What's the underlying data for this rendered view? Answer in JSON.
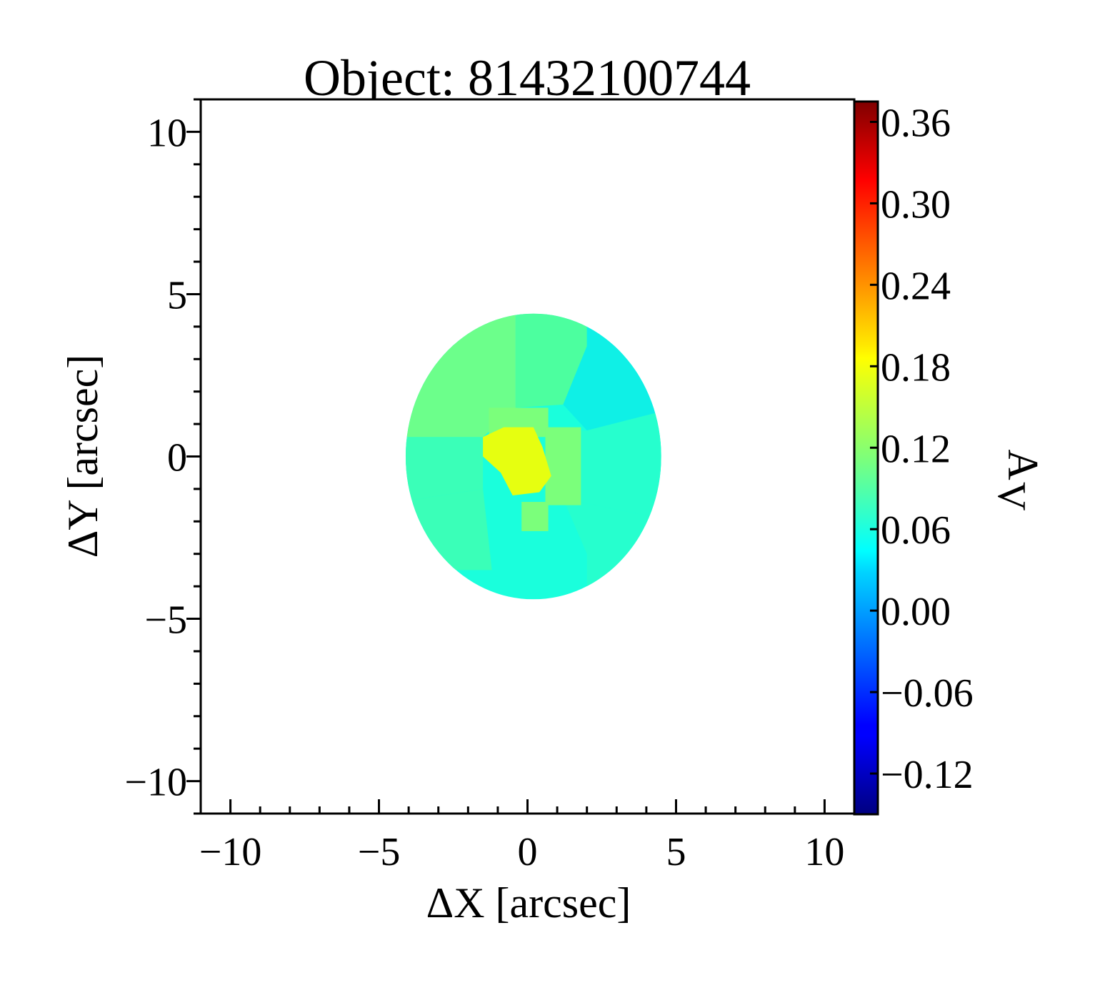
{
  "chart_data": {
    "type": "heatmap",
    "title": "Object: 81432100744",
    "xlabel": "ΔX [arcsec]",
    "ylabel": "ΔY [arcsec]",
    "xlim": [
      -11,
      11
    ],
    "ylim": [
      -11,
      11
    ],
    "x_ticks": [
      -10,
      -5,
      0,
      5,
      10
    ],
    "y_ticks": [
      10,
      5,
      0,
      -5,
      -10
    ],
    "x_tick_labels": [
      "−10",
      "−5",
      "0",
      "5",
      "10"
    ],
    "y_tick_labels": [
      "10",
      "5",
      "0",
      "−5",
      "−10"
    ],
    "grid": false,
    "colorbar": {
      "label_main": "A",
      "label_sub": "V",
      "colormap": "jet",
      "vmin": -0.15,
      "vmax": 0.375,
      "ticks": [
        0.36,
        0.3,
        0.24,
        0.18,
        0.12,
        0.06,
        0.0,
        -0.06,
        -0.12
      ],
      "tick_labels": [
        "0.36",
        "0.30",
        "0.24",
        "0.18",
        "0.12",
        "0.06",
        "0.00",
        "−0.06",
        "−0.12"
      ]
    },
    "map_extent": {
      "center_x": 0.2,
      "center_y": 0.0,
      "radius_x": 4.3,
      "radius_y": 4.4
    },
    "regions": [
      {
        "name": "north",
        "value": 0.07,
        "color": "#4cff9f"
      },
      {
        "name": "north-west",
        "value": 0.09,
        "color": "#6cff8b"
      },
      {
        "name": "north-east",
        "value": 0.03,
        "color": "#0ff0e6"
      },
      {
        "name": "east",
        "value": 0.05,
        "color": "#26ffce"
      },
      {
        "name": "south",
        "value": 0.04,
        "color": "#1affdc"
      },
      {
        "name": "west",
        "value": 0.06,
        "color": "#3affb8"
      },
      {
        "name": "core",
        "value": 0.17,
        "color": "#e6ff10"
      },
      {
        "name": "inner-ring",
        "value": 0.1,
        "color": "#7bff7b"
      }
    ]
  }
}
